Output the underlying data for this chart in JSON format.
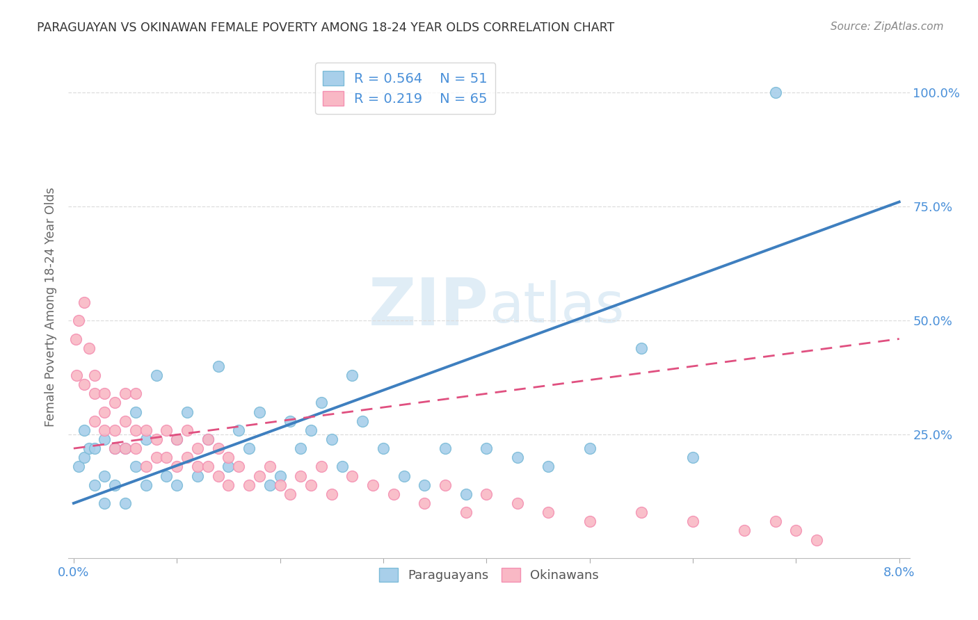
{
  "title": "PARAGUAYAN VS OKINAWAN FEMALE POVERTY AMONG 18-24 YEAR OLDS CORRELATION CHART",
  "source": "Source: ZipAtlas.com",
  "ylabel": "Female Poverty Among 18-24 Year Olds",
  "xlim": [
    0.0,
    0.08
  ],
  "ylim": [
    0.0,
    1.08
  ],
  "ytick_positions": [
    0.0,
    0.25,
    0.5,
    0.75,
    1.0
  ],
  "ytick_labels": [
    "",
    "25.0%",
    "50.0%",
    "75.0%",
    "100.0%"
  ],
  "xtick_positions": [
    0.0,
    0.01,
    0.02,
    0.03,
    0.04,
    0.05,
    0.06,
    0.07,
    0.08
  ],
  "xtick_labels": [
    "0.0%",
    "",
    "",
    "",
    "",
    "",
    "",
    "",
    "8.0%"
  ],
  "blue_scatter_color": "#A8CFEA",
  "blue_scatter_edge": "#7BBBD8",
  "pink_scatter_color": "#F9B8C5",
  "pink_scatter_edge": "#F48FB1",
  "blue_line_color": "#3E7FBF",
  "pink_line_color": "#E05080",
  "tick_label_color": "#4A90D9",
  "ylabel_color": "#666666",
  "title_color": "#333333",
  "source_color": "#888888",
  "watermark_color": "#C8DFF0",
  "grid_color": "#DDDDDD",
  "legend_r1": "R = 0.564",
  "legend_n1": "N = 51",
  "legend_r2": "R = 0.219",
  "legend_n2": "N = 65",
  "blue_line_x0": 0.0,
  "blue_line_y0": 0.1,
  "blue_line_x1": 0.08,
  "blue_line_y1": 0.76,
  "pink_line_x0": 0.0,
  "pink_line_y0": 0.22,
  "pink_line_x1": 0.08,
  "pink_line_y1": 0.46,
  "par_x": [
    0.0005,
    0.001,
    0.001,
    0.0015,
    0.002,
    0.002,
    0.003,
    0.003,
    0.003,
    0.004,
    0.004,
    0.005,
    0.005,
    0.006,
    0.006,
    0.007,
    0.007,
    0.008,
    0.009,
    0.01,
    0.01,
    0.011,
    0.012,
    0.013,
    0.014,
    0.015,
    0.016,
    0.017,
    0.018,
    0.019,
    0.02,
    0.021,
    0.022,
    0.023,
    0.024,
    0.025,
    0.026,
    0.027,
    0.028,
    0.03,
    0.032,
    0.034,
    0.036,
    0.038,
    0.04,
    0.043,
    0.046,
    0.05,
    0.055,
    0.06,
    0.068
  ],
  "par_y": [
    0.18,
    0.2,
    0.26,
    0.22,
    0.14,
    0.22,
    0.1,
    0.16,
    0.24,
    0.14,
    0.22,
    0.1,
    0.22,
    0.18,
    0.3,
    0.14,
    0.24,
    0.38,
    0.16,
    0.14,
    0.24,
    0.3,
    0.16,
    0.24,
    0.4,
    0.18,
    0.26,
    0.22,
    0.3,
    0.14,
    0.16,
    0.28,
    0.22,
    0.26,
    0.32,
    0.24,
    0.18,
    0.38,
    0.28,
    0.22,
    0.16,
    0.14,
    0.22,
    0.12,
    0.22,
    0.2,
    0.18,
    0.22,
    0.44,
    0.2,
    1.0
  ],
  "oki_x": [
    0.0002,
    0.0003,
    0.0005,
    0.001,
    0.001,
    0.0015,
    0.002,
    0.002,
    0.002,
    0.003,
    0.003,
    0.003,
    0.004,
    0.004,
    0.004,
    0.005,
    0.005,
    0.005,
    0.006,
    0.006,
    0.006,
    0.007,
    0.007,
    0.008,
    0.008,
    0.009,
    0.009,
    0.01,
    0.01,
    0.011,
    0.011,
    0.012,
    0.012,
    0.013,
    0.013,
    0.014,
    0.014,
    0.015,
    0.015,
    0.016,
    0.017,
    0.018,
    0.019,
    0.02,
    0.021,
    0.022,
    0.023,
    0.024,
    0.025,
    0.027,
    0.029,
    0.031,
    0.034,
    0.036,
    0.038,
    0.04,
    0.043,
    0.046,
    0.05,
    0.055,
    0.06,
    0.065,
    0.068,
    0.07,
    0.072
  ],
  "oki_y": [
    0.46,
    0.38,
    0.5,
    0.54,
    0.36,
    0.44,
    0.34,
    0.28,
    0.38,
    0.26,
    0.34,
    0.3,
    0.26,
    0.32,
    0.22,
    0.28,
    0.34,
    0.22,
    0.26,
    0.34,
    0.22,
    0.18,
    0.26,
    0.24,
    0.2,
    0.26,
    0.2,
    0.18,
    0.24,
    0.2,
    0.26,
    0.18,
    0.22,
    0.18,
    0.24,
    0.16,
    0.22,
    0.14,
    0.2,
    0.18,
    0.14,
    0.16,
    0.18,
    0.14,
    0.12,
    0.16,
    0.14,
    0.18,
    0.12,
    0.16,
    0.14,
    0.12,
    0.1,
    0.14,
    0.08,
    0.12,
    0.1,
    0.08,
    0.06,
    0.08,
    0.06,
    0.04,
    0.06,
    0.04,
    0.02
  ]
}
